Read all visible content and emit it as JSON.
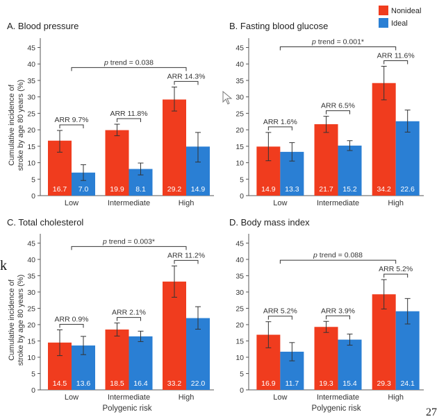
{
  "legend": {
    "items": [
      {
        "label": "Nonideal",
        "color": "#f03c1e"
      },
      {
        "label": "Ideal",
        "color": "#2a7fd4"
      }
    ]
  },
  "shared": {
    "ylabel_line1": "Cumulative incidence of",
    "ylabel_line2": "stroke by age 80 years (%)",
    "xlabel": "Polygenic risk",
    "categories": [
      "Low",
      "Intermediate",
      "High"
    ],
    "yticks": [
      0,
      5,
      10,
      15,
      20,
      25,
      30,
      35,
      40,
      45
    ],
    "ylim": [
      0,
      47
    ]
  },
  "slide_number": "27",
  "stray_text": "k",
  "chart_data": [
    {
      "type": "bar",
      "title": "A. Blood pressure",
      "categories": [
        "Low",
        "Intermediate",
        "High"
      ],
      "series": [
        {
          "name": "Nonideal",
          "values": [
            16.7,
            19.9,
            29.2
          ],
          "labels": [
            "16.7",
            "19.9",
            "29.2"
          ],
          "err_low": [
            13.2,
            18.2,
            25.7
          ],
          "err_high": [
            19.8,
            21.7,
            33.0
          ]
        },
        {
          "name": "Ideal",
          "values": [
            7.0,
            8.1,
            14.9
          ],
          "labels": [
            "7.0",
            "8.1",
            "14.9"
          ],
          "err_low": [
            4.6,
            6.3,
            10.2
          ],
          "err_high": [
            9.4,
            9.9,
            19.2
          ]
        }
      ],
      "arr": [
        "ARR 9.7%",
        "ARR 11.8%",
        "ARR 14.3%"
      ],
      "ptrend": {
        "p": "p",
        "rest": " trend = 0.038"
      },
      "show_xlabel": false,
      "ylim": [
        0,
        47
      ]
    },
    {
      "type": "bar",
      "title": "B. Fasting blood glucose",
      "categories": [
        "Low",
        "Intermediate",
        "High"
      ],
      "series": [
        {
          "name": "Nonideal",
          "values": [
            14.9,
            21.7,
            34.2
          ],
          "labels": [
            "14.9",
            "21.7",
            "34.2"
          ],
          "err_low": [
            10.6,
            19.2,
            29.1
          ],
          "err_high": [
            19.2,
            24.1,
            39.3
          ]
        },
        {
          "name": "Ideal",
          "values": [
            13.3,
            15.2,
            22.6
          ],
          "labels": [
            "13.3",
            "15.2",
            "22.6"
          ],
          "err_low": [
            10.5,
            13.7,
            19.3
          ],
          "err_high": [
            16.1,
            16.7,
            26.0
          ]
        }
      ],
      "arr": [
        "ARR 1.6%",
        "ARR 6.5%",
        "ARR 11.6%"
      ],
      "ptrend": {
        "p": "p",
        "rest": " trend = 0.001*"
      },
      "show_xlabel": false,
      "ylim": [
        0,
        47
      ]
    },
    {
      "type": "bar",
      "title": "C. Total cholesterol",
      "categories": [
        "Low",
        "Intermediate",
        "High"
      ],
      "series": [
        {
          "name": "Nonideal",
          "values": [
            14.5,
            18.5,
            33.2
          ],
          "labels": [
            "14.5",
            "18.5",
            "33.2"
          ],
          "err_low": [
            10.5,
            16.5,
            28.4
          ],
          "err_high": [
            18.4,
            20.5,
            38.0
          ]
        },
        {
          "name": "Ideal",
          "values": [
            13.6,
            16.4,
            22.0
          ],
          "labels": [
            "13.6",
            "16.4",
            "22.0"
          ],
          "err_low": [
            10.8,
            14.8,
            18.6
          ],
          "err_high": [
            16.4,
            18.0,
            25.5
          ]
        }
      ],
      "arr": [
        "ARR 0.9%",
        "ARR 2.1%",
        "ARR 11.2%"
      ],
      "ptrend": {
        "p": "p",
        "rest": " trend = 0.003*"
      },
      "show_xlabel": true,
      "ylim": [
        0,
        47
      ]
    },
    {
      "type": "bar",
      "title": "D. Body mass index",
      "categories": [
        "Low",
        "Intermediate",
        "High"
      ],
      "series": [
        {
          "name": "Nonideal",
          "values": [
            16.9,
            19.3,
            29.3
          ],
          "labels": [
            "16.9",
            "19.3",
            "29.3"
          ],
          "err_low": [
            12.9,
            17.6,
            24.8
          ],
          "err_high": [
            20.9,
            21.0,
            33.8
          ]
        },
        {
          "name": "Ideal",
          "values": [
            11.7,
            15.4,
            24.1
          ],
          "labels": [
            "11.7",
            "15.4",
            "24.1"
          ],
          "err_low": [
            8.9,
            13.7,
            20.2
          ],
          "err_high": [
            14.5,
            17.1,
            28.0
          ]
        }
      ],
      "arr": [
        "ARR 5.2%",
        "ARR 3.9%",
        "ARR 5.2%"
      ],
      "ptrend": {
        "p": "p",
        "rest": " trend = 0.088"
      },
      "show_xlabel": true,
      "ylim": [
        0,
        47
      ]
    }
  ]
}
